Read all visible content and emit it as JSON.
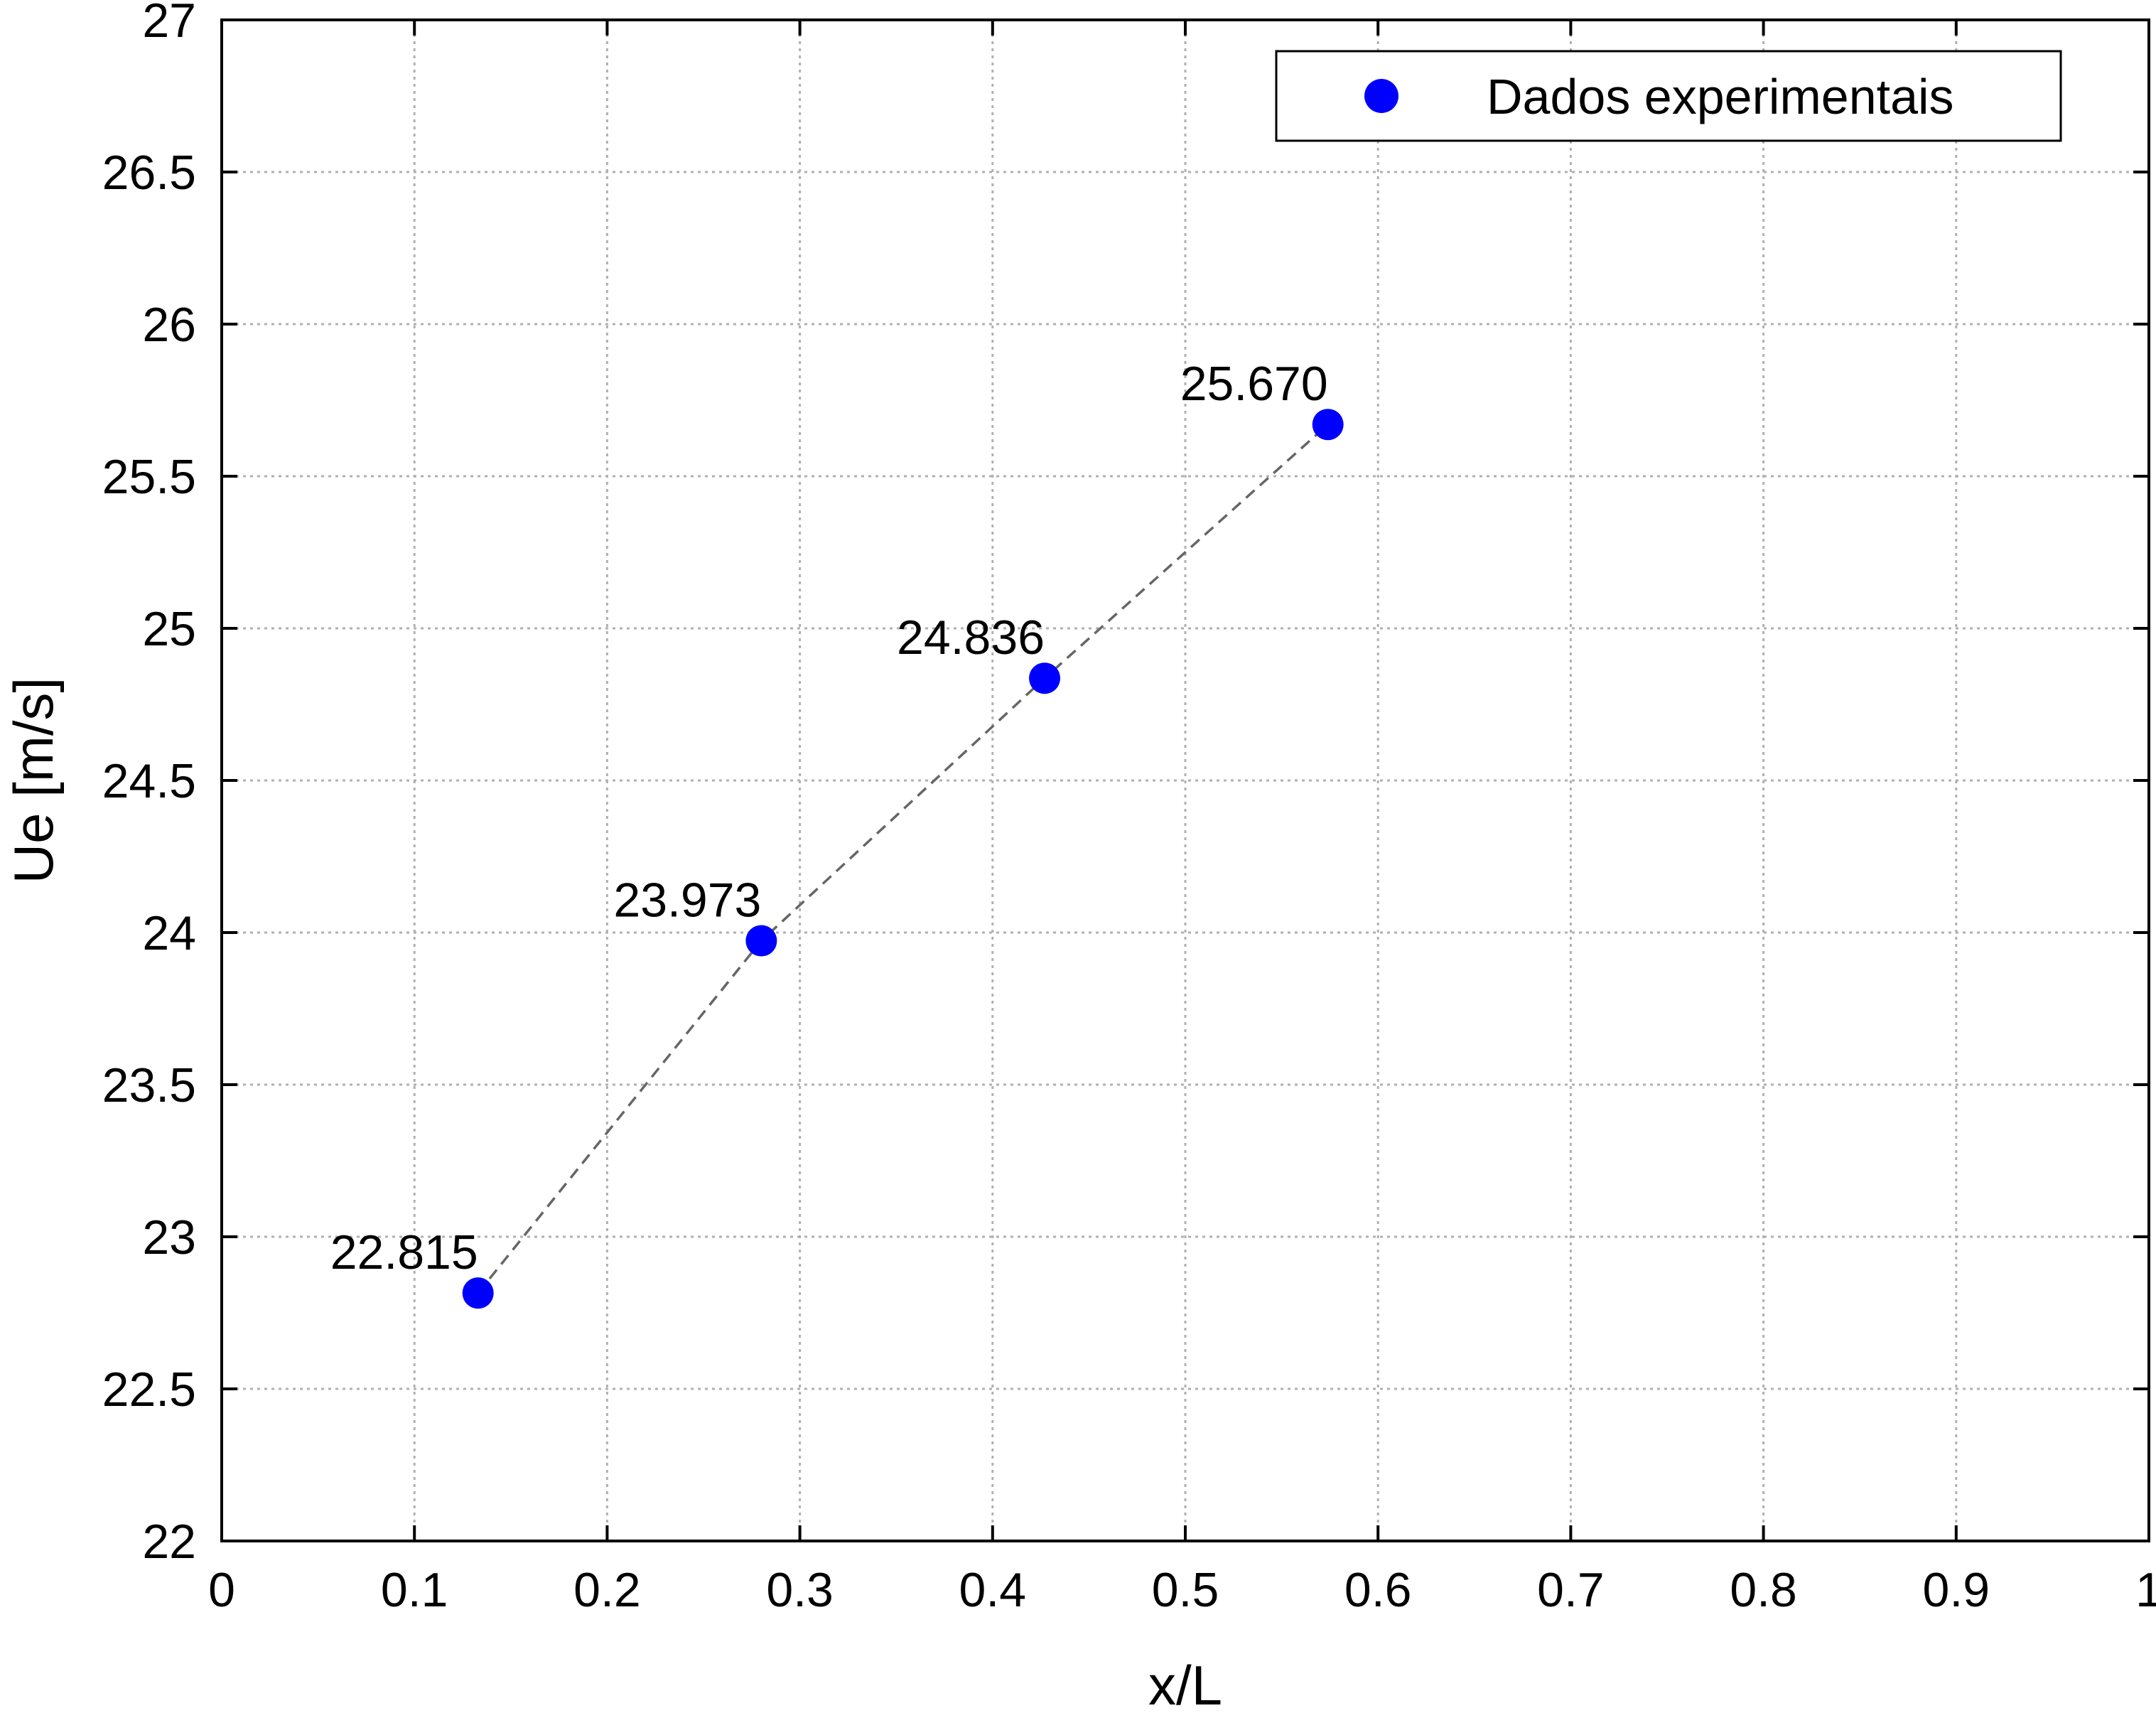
{
  "chart_data": {
    "type": "scatter",
    "title": "",
    "xlabel": "x/L",
    "ylabel": "Ue [m/s]",
    "xlim": [
      0,
      1
    ],
    "ylim": [
      22,
      27
    ],
    "xticks": [
      0,
      0.1,
      0.2,
      0.3,
      0.4,
      0.5,
      0.6,
      0.7,
      0.8,
      0.9,
      1
    ],
    "xtick_labels": [
      "0",
      "0.1",
      "0.2",
      "0.3",
      "0.4",
      "0.5",
      "0.6",
      "0.7",
      "0.8",
      "0.9",
      "1"
    ],
    "yticks": [
      22,
      22.5,
      23,
      23.5,
      24,
      24.5,
      25,
      25.5,
      26,
      26.5,
      27
    ],
    "ytick_labels": [
      "22",
      "22.5",
      "23",
      "23.5",
      "24",
      "24.5",
      "25",
      "25.5",
      "26",
      "26.5",
      "27"
    ],
    "grid": true,
    "legend_position": "top-right",
    "series": [
      {
        "name": "Dados experimentais",
        "marker": "circle",
        "color": "#0000ff",
        "x": [
          0.133,
          0.28,
          0.427,
          0.574
        ],
        "y": [
          22.815,
          23.973,
          24.836,
          25.67
        ],
        "labels": [
          "22.815",
          "23.973",
          "24.836",
          "25.670"
        ]
      }
    ],
    "trend_line": {
      "style": "dashed",
      "color": "#666666"
    }
  }
}
